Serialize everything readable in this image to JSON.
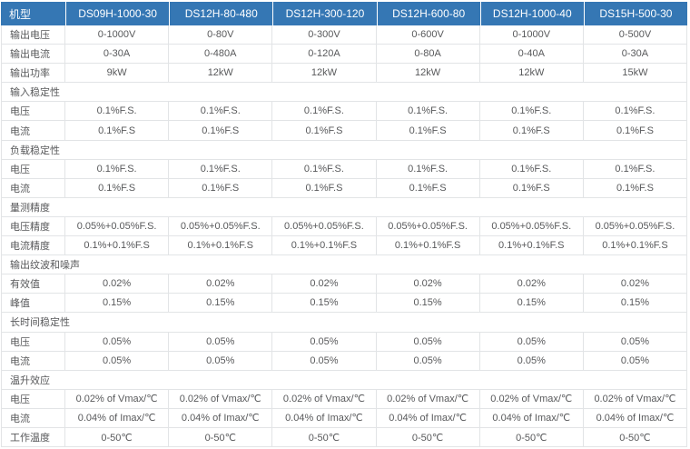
{
  "colors": {
    "header_bg": "#3577b4",
    "header_text": "#ffffff",
    "body_text": "#58595b",
    "border": "#e2e4e6",
    "page_bg": "#ffffff"
  },
  "header": {
    "model_label": "机型",
    "models": [
      "DS09H-1000-30",
      "DS12H-80-480",
      "DS12H-300-120",
      "DS12H-600-80",
      "DS12H-1000-40",
      "DS15H-500-30"
    ]
  },
  "rows": [
    {
      "type": "data",
      "label": "输出电压",
      "values": [
        "0-1000V",
        "0-80V",
        "0-300V",
        "0-600V",
        "0-1000V",
        "0-500V"
      ]
    },
    {
      "type": "data",
      "label": "输出电流",
      "values": [
        "0-30A",
        "0-480A",
        "0-120A",
        "0-80A",
        "0-40A",
        "0-30A"
      ]
    },
    {
      "type": "data",
      "label": "输出功率",
      "values": [
        "9kW",
        "12kW",
        "12kW",
        "12kW",
        "12kW",
        "15kW"
      ]
    },
    {
      "type": "section",
      "label": "输入稳定性"
    },
    {
      "type": "data",
      "label": "电压",
      "values": [
        "0.1%F.S.",
        "0.1%F.S.",
        "0.1%F.S.",
        "0.1%F.S.",
        "0.1%F.S.",
        "0.1%F.S."
      ]
    },
    {
      "type": "data",
      "label": "电流",
      "values": [
        "0.1%F.S",
        "0.1%F.S",
        "0.1%F.S",
        "0.1%F.S",
        "0.1%F.S",
        "0.1%F.S"
      ]
    },
    {
      "type": "section",
      "label": "负载稳定性"
    },
    {
      "type": "data",
      "label": "电压",
      "values": [
        "0.1%F.S.",
        "0.1%F.S.",
        "0.1%F.S.",
        "0.1%F.S.",
        "0.1%F.S.",
        "0.1%F.S."
      ]
    },
    {
      "type": "data",
      "label": "电流",
      "values": [
        "0.1%F.S",
        "0.1%F.S",
        "0.1%F.S",
        "0.1%F.S",
        "0.1%F.S",
        "0.1%F.S"
      ]
    },
    {
      "type": "section",
      "label": "量测精度"
    },
    {
      "type": "data",
      "label": "电压精度",
      "values": [
        "0.05%+0.05%F.S.",
        "0.05%+0.05%F.S.",
        "0.05%+0.05%F.S.",
        "0.05%+0.05%F.S.",
        "0.05%+0.05%F.S.",
        "0.05%+0.05%F.S."
      ]
    },
    {
      "type": "data",
      "label": "电流精度",
      "values": [
        "0.1%+0.1%F.S",
        "0.1%+0.1%F.S",
        "0.1%+0.1%F.S",
        "0.1%+0.1%F.S",
        "0.1%+0.1%F.S",
        "0.1%+0.1%F.S"
      ]
    },
    {
      "type": "section",
      "label": "输出纹波和噪声"
    },
    {
      "type": "data",
      "label": "有效值",
      "values": [
        "0.02%",
        "0.02%",
        "0.02%",
        "0.02%",
        "0.02%",
        "0.02%"
      ]
    },
    {
      "type": "data",
      "label": "峰值",
      "values": [
        "0.15%",
        "0.15%",
        "0.15%",
        "0.15%",
        "0.15%",
        "0.15%"
      ]
    },
    {
      "type": "section",
      "label": "长时间稳定性"
    },
    {
      "type": "data",
      "label": "电压",
      "values": [
        "0.05%",
        "0.05%",
        "0.05%",
        "0.05%",
        "0.05%",
        "0.05%"
      ]
    },
    {
      "type": "data",
      "label": "电流",
      "values": [
        "0.05%",
        "0.05%",
        "0.05%",
        "0.05%",
        "0.05%",
        "0.05%"
      ]
    },
    {
      "type": "section",
      "label": "温升效应"
    },
    {
      "type": "data",
      "label": "电压",
      "values": [
        "0.02% of Vmax/℃",
        "0.02% of Vmax/℃",
        "0.02% of Vmax/℃",
        "0.02% of Vmax/℃",
        "0.02% of Vmax/℃",
        "0.02% of Vmax/℃"
      ]
    },
    {
      "type": "data",
      "label": "电流",
      "values": [
        "0.04% of Imax/℃",
        "0.04% of Imax/℃",
        "0.04% of Imax/℃",
        "0.04% of Imax/℃",
        "0.04% of Imax/℃",
        "0.04% of Imax/℃"
      ]
    },
    {
      "type": "data",
      "label": "工作温度",
      "values": [
        "0-50℃",
        "0-50℃",
        "0-50℃",
        "0-50℃",
        "0-50℃",
        "0-50℃"
      ]
    }
  ]
}
